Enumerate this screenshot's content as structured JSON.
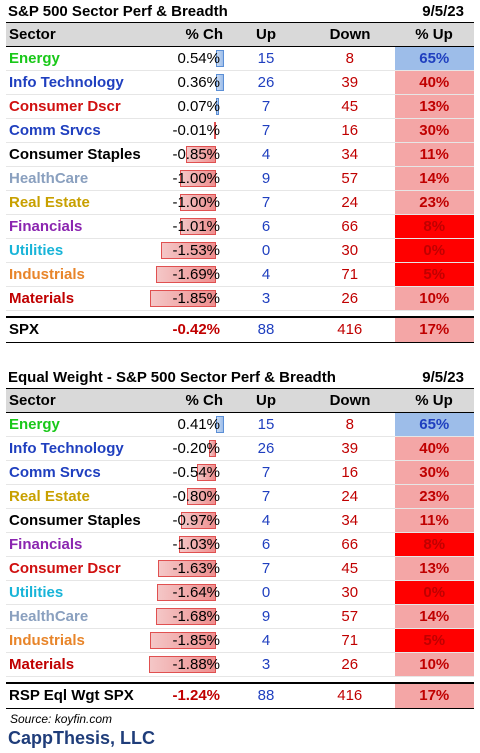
{
  "table1": {
    "title": "S&P 500 Sector Perf & Breadth",
    "date": "9/5/23",
    "headers": [
      "Sector",
      "% Ch",
      "Up",
      "Down",
      "% Up"
    ],
    "rows": [
      {
        "sector": "Energy",
        "color": "#19c819",
        "pct": "0.54%",
        "val": 0.54,
        "up": "15",
        "down": "8",
        "pup": "65%",
        "pup_bg": "#9dbde9"
      },
      {
        "sector": "Info Technology",
        "color": "#1f3fbf",
        "pct": "0.36%",
        "val": 0.36,
        "up": "26",
        "down": "39",
        "pup": "40%",
        "pup_bg": "#f4a6a6"
      },
      {
        "sector": "Consumer Dscr",
        "color": "#d01010",
        "pct": "0.07%",
        "val": 0.07,
        "up": "7",
        "down": "45",
        "pup": "13%",
        "pup_bg": "#f4a6a6"
      },
      {
        "sector": "Comm Srvcs",
        "color": "#1f3fbf",
        "pct": "-0.01%",
        "val": -0.01,
        "up": "7",
        "down": "16",
        "pup": "30%",
        "pup_bg": "#f4a6a6"
      },
      {
        "sector": "Consumer Staples",
        "color": "#000000",
        "pct": "-0.85%",
        "val": -0.85,
        "up": "4",
        "down": "34",
        "pup": "11%",
        "pup_bg": "#f4a6a6"
      },
      {
        "sector": "HealthCare",
        "color": "#8aa0bf",
        "pct": "-1.00%",
        "val": -1.0,
        "up": "9",
        "down": "57",
        "pup": "14%",
        "pup_bg": "#f4a6a6"
      },
      {
        "sector": "Real Estate",
        "color": "#c8a000",
        "pct": "-1.00%",
        "val": -1.0,
        "up": "7",
        "down": "24",
        "pup": "23%",
        "pup_bg": "#f4a6a6"
      },
      {
        "sector": "Financials",
        "color": "#8b25b0",
        "pct": "-1.01%",
        "val": -1.01,
        "up": "6",
        "down": "66",
        "pup": "8%",
        "pup_bg": "#ff0000"
      },
      {
        "sector": "Utilities",
        "color": "#18b4d8",
        "pct": "-1.53%",
        "val": -1.53,
        "up": "0",
        "down": "30",
        "pup": "0%",
        "pup_bg": "#ff0000"
      },
      {
        "sector": "Industrials",
        "color": "#e8852a",
        "pct": "-1.69%",
        "val": -1.69,
        "up": "4",
        "down": "71",
        "pup": "5%",
        "pup_bg": "#ff0000"
      },
      {
        "sector": "Materials",
        "color": "#c00000",
        "pct": "-1.85%",
        "val": -1.85,
        "up": "3",
        "down": "26",
        "pup": "10%",
        "pup_bg": "#f4a6a6"
      }
    ],
    "total": {
      "sector": "SPX",
      "pct": "-0.42%",
      "up": "88",
      "down": "416",
      "pup": "17%",
      "pup_bg": "#f4a6a6"
    }
  },
  "table2": {
    "title": "Equal Weight - S&P 500 Sector Perf & Breadth",
    "date": "9/5/23",
    "headers": [
      "Sector",
      "% Ch",
      "Up",
      "Down",
      "% Up"
    ],
    "rows": [
      {
        "sector": "Energy",
        "color": "#19c819",
        "pct": "0.41%",
        "val": 0.41,
        "up": "15",
        "down": "8",
        "pup": "65%",
        "pup_bg": "#9dbde9"
      },
      {
        "sector": "Info Technology",
        "color": "#1f3fbf",
        "pct": "-0.20%",
        "val": -0.2,
        "up": "26",
        "down": "39",
        "pup": "40%",
        "pup_bg": "#f4a6a6"
      },
      {
        "sector": "Comm Srvcs",
        "color": "#1f3fbf",
        "pct": "-0.54%",
        "val": -0.54,
        "up": "7",
        "down": "16",
        "pup": "30%",
        "pup_bg": "#f4a6a6"
      },
      {
        "sector": "Real Estate",
        "color": "#c8a000",
        "pct": "-0.80%",
        "val": -0.8,
        "up": "7",
        "down": "24",
        "pup": "23%",
        "pup_bg": "#f4a6a6"
      },
      {
        "sector": "Consumer Staples",
        "color": "#000000",
        "pct": "-0.97%",
        "val": -0.97,
        "up": "4",
        "down": "34",
        "pup": "11%",
        "pup_bg": "#f4a6a6"
      },
      {
        "sector": "Financials",
        "color": "#8b25b0",
        "pct": "-1.03%",
        "val": -1.03,
        "up": "6",
        "down": "66",
        "pup": "8%",
        "pup_bg": "#ff0000"
      },
      {
        "sector": "Consumer Dscr",
        "color": "#d01010",
        "pct": "-1.63%",
        "val": -1.63,
        "up": "7",
        "down": "45",
        "pup": "13%",
        "pup_bg": "#f4a6a6"
      },
      {
        "sector": "Utilities",
        "color": "#18b4d8",
        "pct": "-1.64%",
        "val": -1.64,
        "up": "0",
        "down": "30",
        "pup": "0%",
        "pup_bg": "#ff0000"
      },
      {
        "sector": "HealthCare",
        "color": "#8aa0bf",
        "pct": "-1.68%",
        "val": -1.68,
        "up": "9",
        "down": "57",
        "pup": "14%",
        "pup_bg": "#f4a6a6"
      },
      {
        "sector": "Industrials",
        "color": "#e8852a",
        "pct": "-1.85%",
        "val": -1.85,
        "up": "4",
        "down": "71",
        "pup": "5%",
        "pup_bg": "#ff0000"
      },
      {
        "sector": "Materials",
        "color": "#c00000",
        "pct": "-1.88%",
        "val": -1.88,
        "up": "3",
        "down": "26",
        "pup": "10%",
        "pup_bg": "#f4a6a6"
      }
    ],
    "total": {
      "sector": "RSP Eql Wgt SPX",
      "pct": "-1.24%",
      "up": "88",
      "down": "416",
      "pup": "17%",
      "pup_bg": "#f4a6a6"
    }
  },
  "footer": {
    "source": "Source: koyfin.com",
    "brand": "CappThesis, LLC"
  }
}
